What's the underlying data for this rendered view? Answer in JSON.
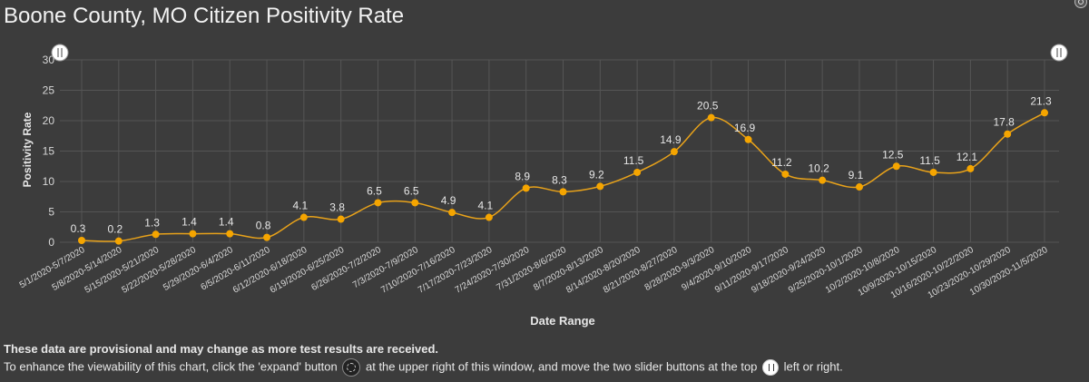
{
  "window": {
    "title": "Boone County, MO Citizen Positivity Rate"
  },
  "notes": {
    "line1": "These data are provisional and may change as more test results are received.",
    "line2_a": "To enhance the viewability of this chart, click the 'expand' button",
    "line2_b": "at the upper right of this window, and move the two slider buttons at the top",
    "line2_c": "left or right."
  },
  "icons": {
    "expand": "expand-icon",
    "slider": "slider-handle-icon"
  },
  "colors": {
    "line": "#e8a21a",
    "point": "#f5a500",
    "grid": "#555555",
    "background": "#3c3c3c"
  },
  "chart_data": {
    "type": "line",
    "title": "Boone County, MO Citizen Positivity Rate",
    "xlabel": "Date Range",
    "ylabel": "Positivity Rate",
    "ylim": [
      0,
      30
    ],
    "yticks": [
      0,
      5,
      10,
      15,
      20,
      25,
      30
    ],
    "grid": true,
    "categories": [
      "5/1/2020-5/7/2020",
      "5/8/2020-5/14/2020",
      "5/15/2020-5/21/2020",
      "5/22/2020-5/28/2020",
      "5/29/2020-6/4/2020",
      "6/5/2020-6/11/2020",
      "6/12/2020-6/18/2020",
      "6/19/2020-6/25/2020",
      "6/26/2020-7/2/2020",
      "7/3/2020-7/9/2020",
      "7/10/2020-7/16/2020",
      "7/17/2020-7/23/2020",
      "7/24/2020-7/30/2020",
      "7/31/2020-8/6/2020",
      "8/7/2020-8/13/2020",
      "8/14/2020-8/20/2020",
      "8/21/2020-8/27/2020",
      "8/28/2020-9/3/2020",
      "9/4/2020-9/10/2020",
      "9/11/2020-9/17/2020",
      "9/18/2020-9/24/2020",
      "9/25/2020-10/1/2020",
      "10/2/2020-10/8/2020",
      "10/9/2020-10/15/2020",
      "10/16/2020-10/22/2020",
      "10/23/2020-10/29/2020",
      "10/30/2020-11/5/2020"
    ],
    "values": [
      0.3,
      0.2,
      1.3,
      1.4,
      1.4,
      0.8,
      4.1,
      3.8,
      6.5,
      6.5,
      4.9,
      4.1,
      8.9,
      8.3,
      9.2,
      11.5,
      14.9,
      20.5,
      16.9,
      11.2,
      10.2,
      9.1,
      12.5,
      11.5,
      12.1,
      17.8,
      21.3
    ],
    "data_labels": [
      "0.3",
      "0.2",
      "1.3",
      "1.4",
      "1.4",
      "0.8",
      "4.1",
      "3.8",
      "6.5",
      "6.5",
      "4.9",
      "4.1",
      "8.9",
      "8.3",
      "9.2",
      "11.5",
      "14.9",
      "20.5",
      "16.9",
      "11.2",
      "10.2",
      "9.1",
      "12.5",
      "11.5",
      "12.1",
      "17.8",
      "21.3"
    ]
  }
}
